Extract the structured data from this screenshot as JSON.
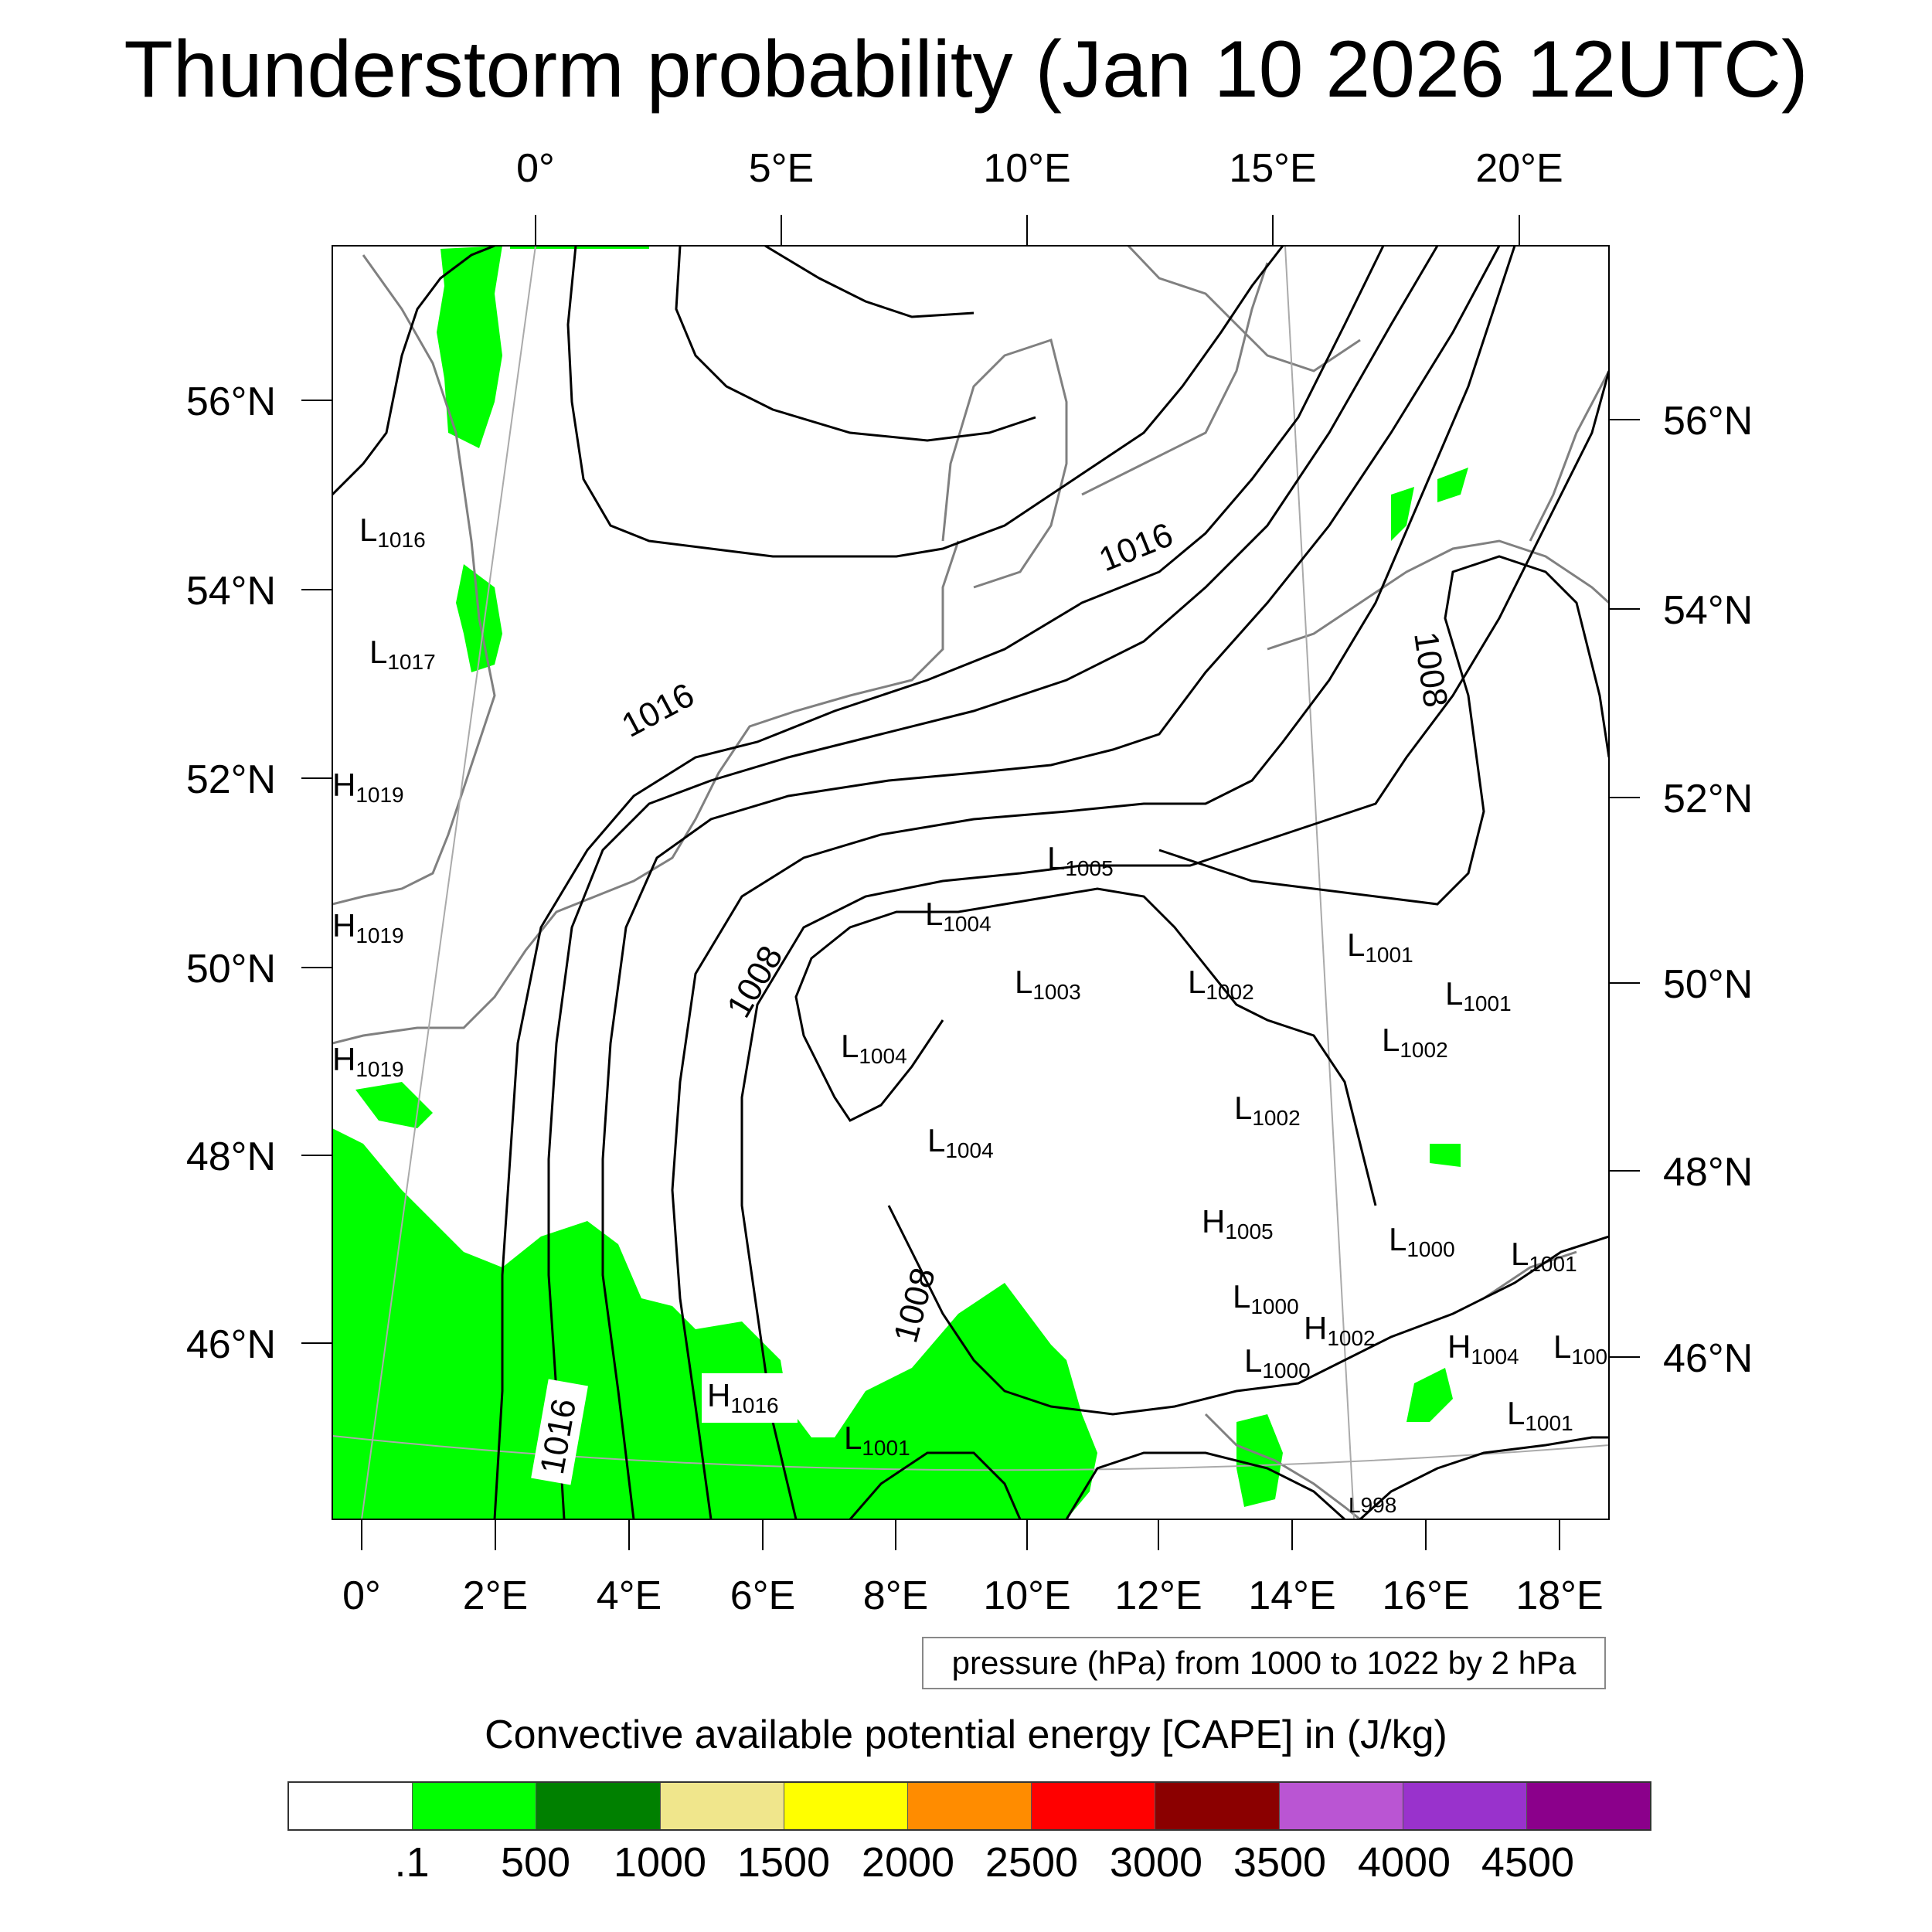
{
  "title": "Thunderstorm probability (Jan 10 2026 12UTC)",
  "top_lon_labels": [
    "0°",
    "5°E",
    "10°E",
    "15°E",
    "20°E"
  ],
  "bottom_lon_labels": [
    "0°",
    "2°E",
    "4°E",
    "6°E",
    "8°E",
    "10°E",
    "12°E",
    "14°E",
    "16°E",
    "18°E"
  ],
  "left_lat_labels": [
    "56°N",
    "54°N",
    "52°N",
    "50°N",
    "48°N",
    "46°N"
  ],
  "right_lat_labels": [
    "56°N",
    "54°N",
    "52°N",
    "50°N",
    "48°N",
    "46°N"
  ],
  "pressure_centers": [
    {
      "type": "L",
      "value": "1016"
    },
    {
      "type": "L",
      "value": "1017"
    },
    {
      "type": "H",
      "value": "1019"
    },
    {
      "type": "H",
      "value": "1019"
    },
    {
      "type": "H",
      "value": "1019"
    },
    {
      "type": "L",
      "value": "1005"
    },
    {
      "type": "L",
      "value": "1004"
    },
    {
      "type": "L",
      "value": "1003"
    },
    {
      "type": "L",
      "value": "1002"
    },
    {
      "type": "L",
      "value": "1001"
    },
    {
      "type": "L",
      "value": "1001"
    },
    {
      "type": "L",
      "value": "1002"
    },
    {
      "type": "L",
      "value": "1004"
    },
    {
      "type": "L",
      "value": "1002"
    },
    {
      "type": "L",
      "value": "1004"
    },
    {
      "type": "H",
      "value": "1005"
    },
    {
      "type": "L",
      "value": "1000"
    },
    {
      "type": "L",
      "value": "1001"
    },
    {
      "type": "L",
      "value": "1000"
    },
    {
      "type": "H",
      "value": "1002"
    },
    {
      "type": "L",
      "value": "1000"
    },
    {
      "type": "H",
      "value": "1004"
    },
    {
      "type": "L",
      "value": "100"
    },
    {
      "type": "H",
      "value": "1016"
    },
    {
      "type": "L",
      "value": "1001"
    },
    {
      "type": "L",
      "value": "1001"
    },
    {
      "type": "L",
      "value": "998"
    }
  ],
  "contour_labels": [
    "1016",
    "1016",
    "1008",
    "1008",
    "1008",
    "1016"
  ],
  "pressure_note": "pressure (hPa) from 1000 to 1022 by 2 hPa",
  "legend": {
    "title": "Convective available potential energy [CAPE] in (J/kg)",
    "colors": [
      "#ffffff",
      "#00ff00",
      "#008000",
      "#f0e68c",
      "#ffff00",
      "#ff8c00",
      "#ff0000",
      "#8b0000",
      "#ba55d3",
      "#9932cc",
      "#8b008b"
    ],
    "tick_labels": [
      ".1",
      "500",
      "1000",
      "1500",
      "2000",
      "2500",
      "3000",
      "3500",
      "4000",
      "4500"
    ]
  }
}
